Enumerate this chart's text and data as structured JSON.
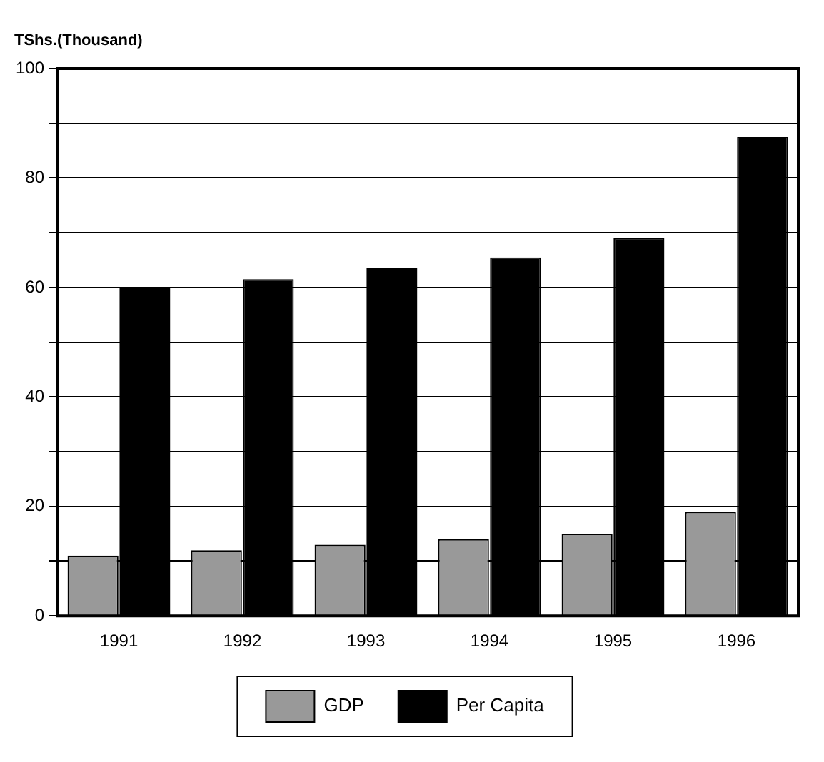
{
  "chart_data": {
    "type": "bar",
    "ylabel": "TShs.(Thousand)",
    "categories": [
      "1991",
      "1992",
      "1993",
      "1994",
      "1995",
      "1996"
    ],
    "series": [
      {
        "name": "GDP",
        "color": "#999999",
        "values": [
          11,
          12,
          13,
          14,
          15,
          19
        ]
      },
      {
        "name": "Per Capita",
        "color": "#000000",
        "values": [
          60,
          61.5,
          63.5,
          65.5,
          69,
          87.5
        ]
      }
    ],
    "ylim": [
      0,
      100
    ],
    "yticks": [
      0,
      {
        "value": 10,
        "label": null
      },
      20,
      {
        "value": 30,
        "label": null
      },
      40,
      {
        "value": 50,
        "label": null
      },
      60,
      {
        "value": 70,
        "label": null
      },
      80,
      {
        "value": 90,
        "label": null
      },
      100
    ],
    "grid": "y",
    "legend": "bottom"
  }
}
